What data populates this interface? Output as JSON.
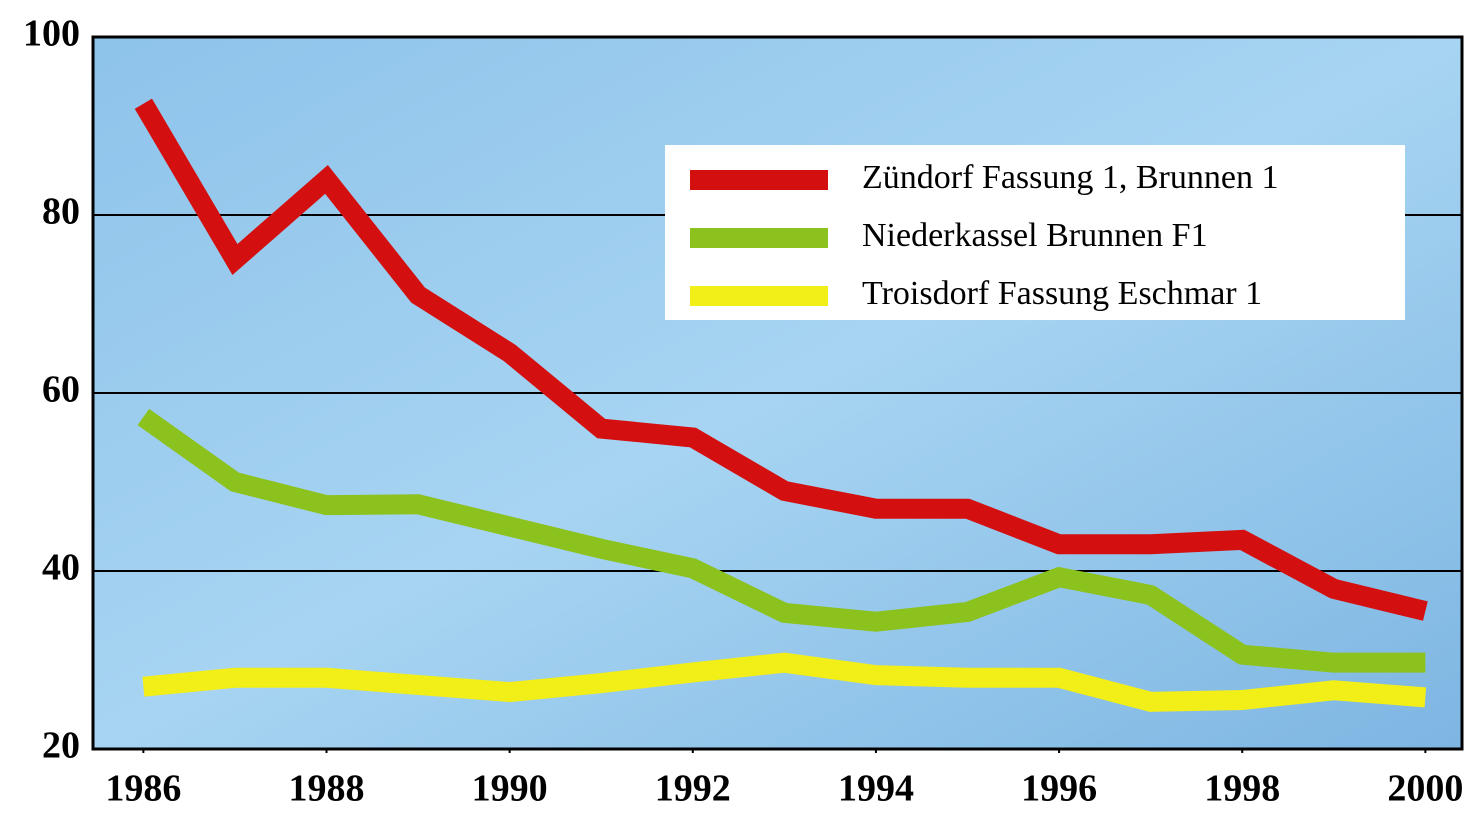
{
  "chart_data": {
    "type": "line",
    "x": [
      1986,
      1987,
      1988,
      1989,
      1990,
      1991,
      1992,
      1993,
      1994,
      1995,
      1996,
      1997,
      1998,
      1999,
      2000
    ],
    "series": [
      {
        "name": "Zündorf Fassung 1, Brunnen 1",
        "color": "#d40f0f",
        "values": [
          92.5,
          75,
          84,
          71,
          64.5,
          56,
          55,
          49,
          47,
          47,
          43,
          43,
          43.5,
          38,
          35.5
        ]
      },
      {
        "name": "Niederkassel Brunnen F1",
        "color": "#8cc21e",
        "values": [
          57.3,
          50,
          47.4,
          47.5,
          45,
          42.5,
          40.3,
          35.3,
          34.3,
          35.4,
          39.3,
          37.3,
          30.6,
          29.7,
          29.7
        ]
      },
      {
        "name": "Troisdorf Fassung Eschmar 1",
        "color": "#f2ee17",
        "values": [
          27,
          28,
          28,
          27.2,
          26.4,
          27.4,
          28.6,
          29.7,
          28.3,
          28,
          28,
          25.3,
          25.5,
          26.6,
          25.8
        ]
      }
    ],
    "xlim": [
      1985.45,
      2000.4
    ],
    "xticks": [
      1986,
      1988,
      1990,
      1992,
      1994,
      1996,
      1998,
      2000
    ],
    "ylim": [
      20,
      100
    ],
    "yticks": [
      20,
      40,
      60,
      80,
      100
    ],
    "grid": true
  }
}
